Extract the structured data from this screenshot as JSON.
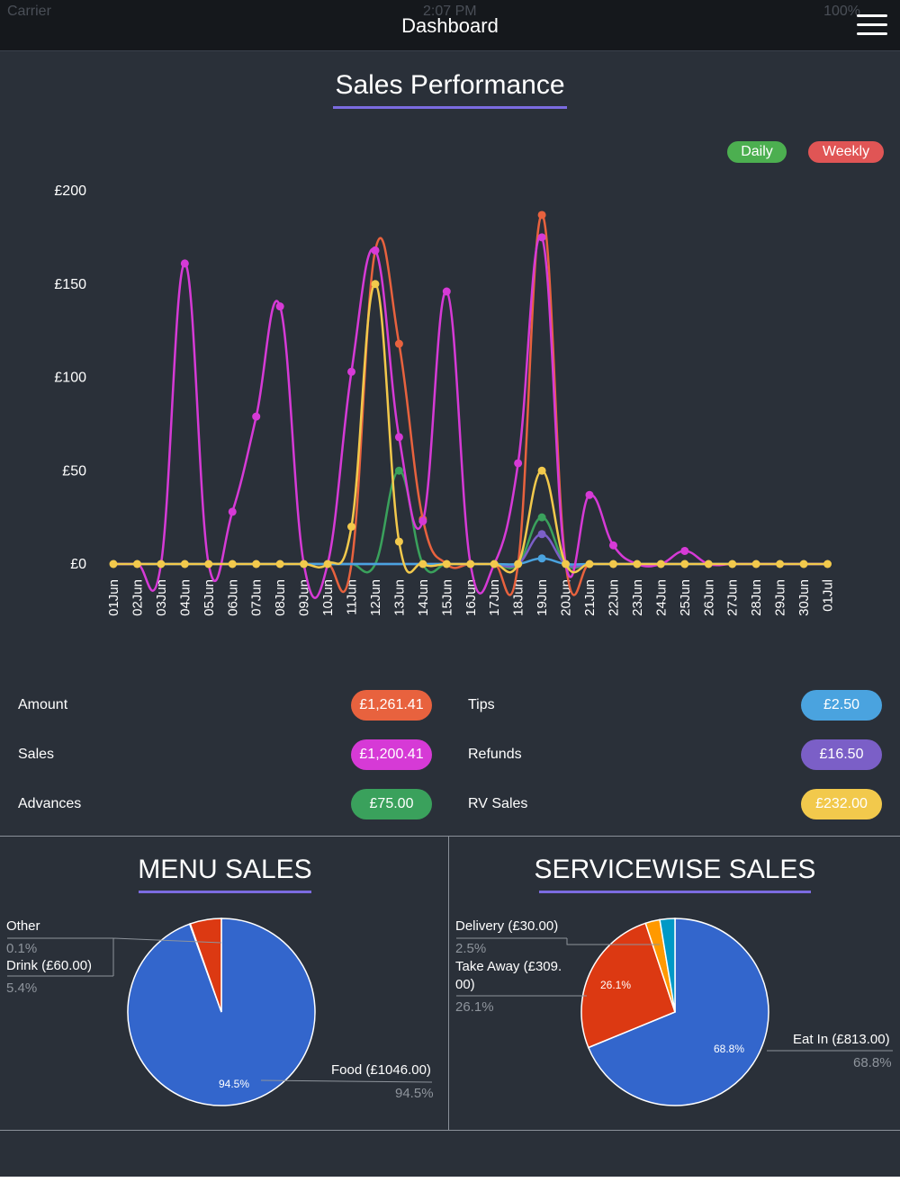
{
  "status_bar": {
    "carrier": "Carrier",
    "time": "2:07 PM",
    "battery": "100%"
  },
  "header": {
    "title": "Dashboard",
    "menu_icon": "hamburger-icon"
  },
  "sales_performance": {
    "title": "Sales Performance",
    "toggles": [
      {
        "label": "Daily",
        "color": "#4caf50"
      },
      {
        "label": "Weekly",
        "color": "#e05555"
      }
    ],
    "chart_data": {
      "type": "line",
      "ylim": [
        0,
        200
      ],
      "y_ticks": [
        "£0",
        "£50",
        "£100",
        "£150",
        "£200"
      ],
      "x": [
        "01Jun",
        "02Jun",
        "03Jun",
        "04Jun",
        "05Jun",
        "06Jun",
        "07Jun",
        "08Jun",
        "09Jun",
        "10Jun",
        "11Jun",
        "12Jun",
        "13Jun",
        "14Jun",
        "15Jun",
        "16Jun",
        "17Jun",
        "18Jun",
        "19Jun",
        "20Jun",
        "21Jun",
        "22Jun",
        "23Jun",
        "24Jun",
        "25Jun",
        "26Jun",
        "27Jun",
        "28Jun",
        "29Jun",
        "30Jun",
        "01Jul"
      ],
      "series": [
        {
          "color": "#e8623e",
          "values": [
            0,
            0,
            0,
            0,
            0,
            0,
            0,
            0,
            0,
            0,
            0,
            168,
            118,
            24,
            0,
            0,
            0,
            0,
            187,
            0,
            0,
            0,
            0,
            0,
            0,
            0,
            0,
            0,
            0,
            0,
            0
          ]
        },
        {
          "color": "#3aa15c",
          "values": [
            0,
            0,
            0,
            0,
            0,
            0,
            0,
            0,
            0,
            0,
            0,
            0,
            50,
            0,
            0,
            0,
            0,
            0,
            25,
            0,
            0,
            0,
            0,
            0,
            0,
            0,
            0,
            0,
            0,
            0,
            0
          ]
        },
        {
          "color": "#7b5fc7",
          "values": [
            0,
            0,
            0,
            0,
            0,
            0,
            0,
            0,
            0,
            0,
            0,
            0,
            0,
            0,
            0,
            0,
            0,
            0,
            16,
            0,
            0,
            0,
            0,
            0,
            0,
            0,
            0,
            0,
            0,
            0,
            0
          ]
        },
        {
          "color": "#4aa3df",
          "values": [
            0,
            0,
            0,
            0,
            0,
            0,
            0,
            0,
            0,
            0,
            0,
            0,
            0,
            0,
            0,
            0,
            0,
            0,
            3,
            0,
            0,
            0,
            0,
            0,
            0,
            0,
            0,
            0,
            0,
            0,
            0
          ]
        },
        {
          "color": "#d63ad6",
          "values": [
            0,
            0,
            0,
            161,
            0,
            28,
            79,
            138,
            0,
            0,
            103,
            168,
            68,
            23,
            146,
            0,
            0,
            54,
            175,
            0,
            37,
            10,
            0,
            0,
            7,
            0,
            0,
            0,
            0,
            0,
            0
          ]
        },
        {
          "color": "#f2c94c",
          "values": [
            0,
            0,
            0,
            0,
            0,
            0,
            0,
            0,
            0,
            0,
            20,
            150,
            12,
            0,
            0,
            0,
            0,
            0,
            50,
            0,
            0,
            0,
            0,
            0,
            0,
            0,
            0,
            0,
            0,
            0,
            0
          ]
        }
      ]
    }
  },
  "stats": {
    "amount": {
      "label": "Amount",
      "value": "£1,261.41",
      "color": "#e8623e"
    },
    "sales": {
      "label": "Sales",
      "value": "£1,200.41",
      "color": "#d63ad6"
    },
    "advances": {
      "label": "Advances",
      "value": "£75.00",
      "color": "#3aa15c"
    },
    "tips": {
      "label": "Tips",
      "value": "£2.50",
      "color": "#4aa3df"
    },
    "refunds": {
      "label": "Refunds",
      "value": "£16.50",
      "color": "#7b5fc7"
    },
    "rv_sales": {
      "label": "RV Sales",
      "value": "£232.00",
      "color": "#f2c94c"
    }
  },
  "menu_sales": {
    "title": "MENU SALES",
    "chart_data": {
      "type": "pie",
      "slices": [
        {
          "label": "Food (£1046.00)",
          "pct_label": "94.5%",
          "value": 94.5,
          "color": "#3366cc"
        },
        {
          "label": "Other",
          "pct_label": "0.1%",
          "value": 0.1,
          "color": "#ff9900"
        },
        {
          "label": "Drink (£60.00)",
          "pct_label": "5.4%",
          "value": 5.4,
          "color": "#dc3912"
        }
      ]
    }
  },
  "servicewise_sales": {
    "title": "SERVICEWISE SALES",
    "chart_data": {
      "type": "pie",
      "slices": [
        {
          "label": "Eat In (£813.00)",
          "pct_label": "68.8%",
          "value": 68.8,
          "color": "#3366cc"
        },
        {
          "label": "Take Away (£309.",
          "label2": "00)",
          "pct_label": "26.1%",
          "value": 26.1,
          "color": "#dc3912"
        },
        {
          "label": "Delivery (£30.00)",
          "pct_label": "2.5%",
          "value": 2.5,
          "color": "#ff9900"
        },
        {
          "label": "",
          "pct_label": "",
          "value": 2.6,
          "color": "#0099c6"
        }
      ]
    }
  }
}
